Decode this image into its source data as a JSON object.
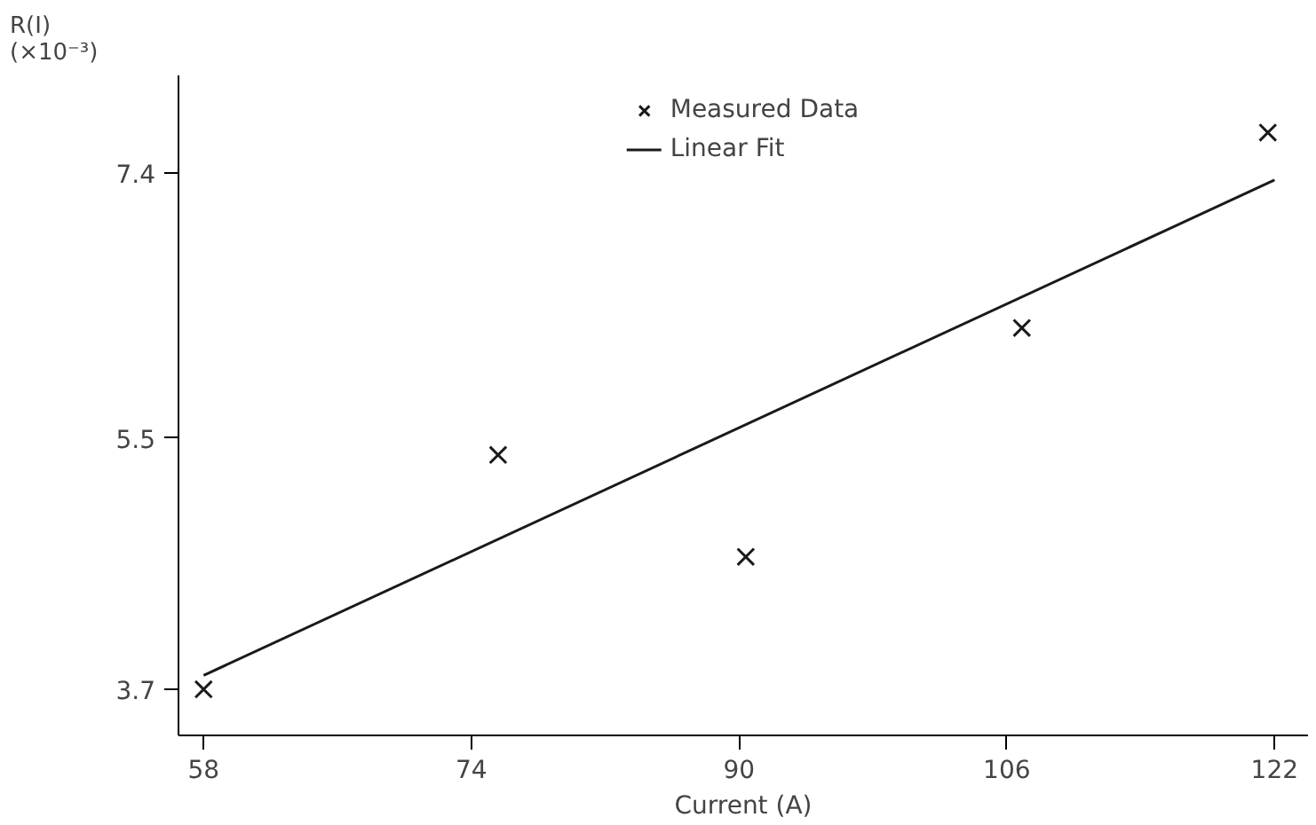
{
  "chart_data": {
    "type": "scatter",
    "xlabel": "Current (A)",
    "ylabel": "R(I)\n(×10⁻³)",
    "xlim": [
      56.5,
      124
    ],
    "ylim": [
      3.37,
      8.1
    ],
    "xticks": [
      58,
      74,
      90,
      106,
      122
    ],
    "yticks": [
      3.7,
      5.5,
      7.4
    ],
    "grid": false,
    "legend": "top",
    "series": [
      {
        "name": "Measured Data",
        "marker": "cross",
        "color": "#1a1a1a",
        "x": [
          58,
          75.6,
          90.4,
          106.9,
          121.6
        ],
        "values": [
          3.7,
          5.38,
          4.65,
          6.29,
          7.69
        ]
      },
      {
        "name": "Linear Fit",
        "type": "line",
        "color": "#1a1a1a",
        "x": [
          58,
          122
        ],
        "values": [
          3.8,
          7.35
        ]
      }
    ]
  }
}
